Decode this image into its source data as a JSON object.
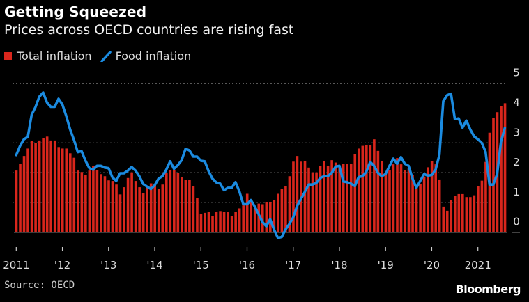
{
  "chart_data": {
    "type": "bar+line",
    "title": "Getting Squeezed",
    "subtitle": "Prices across OECD countries are rising fast",
    "source": "Source: OECD",
    "brand": "Bloomberg",
    "x_start": "2011-01",
    "x_end": "2021-08",
    "x_frequency": "monthly",
    "xtick_labels": [
      "2011",
      "'12",
      "'13",
      "'14",
      "'15",
      "'16",
      "'17",
      "'18",
      "'19",
      "'20",
      "2021"
    ],
    "ytick_labels": [
      "0",
      "1",
      "2",
      "3",
      "4",
      "5"
    ],
    "ylim": [
      -0.4,
      5.3
    ],
    "grid": true,
    "y_axis_side": "right",
    "legend_placement": "top-left",
    "colors": {
      "total": "#d9261c",
      "food": "#1b8be0",
      "background": "#000000"
    },
    "series": [
      {
        "name": "Total inflation",
        "type": "bar",
        "values": [
          2.07,
          2.29,
          2.56,
          2.81,
          3.06,
          3.0,
          3.08,
          3.16,
          3.21,
          3.08,
          3.08,
          2.86,
          2.81,
          2.81,
          2.65,
          2.5,
          2.07,
          2.02,
          1.91,
          2.07,
          2.22,
          2.09,
          1.95,
          1.88,
          1.74,
          1.72,
          1.6,
          1.27,
          1.51,
          1.82,
          2.01,
          1.72,
          1.51,
          1.32,
          1.49,
          1.64,
          1.63,
          1.46,
          1.6,
          1.99,
          2.09,
          2.09,
          1.99,
          1.85,
          1.76,
          1.76,
          1.54,
          1.14,
          0.61,
          0.65,
          0.68,
          0.55,
          0.68,
          0.71,
          0.69,
          0.68,
          0.55,
          0.68,
          0.8,
          0.9,
          1.29,
          1.1,
          0.82,
          0.96,
          0.94,
          1.02,
          1.02,
          1.08,
          1.29,
          1.46,
          1.54,
          1.88,
          2.37,
          2.56,
          2.37,
          2.4,
          2.17,
          2.01,
          2.01,
          2.22,
          2.4,
          2.22,
          2.42,
          2.34,
          2.21,
          2.29,
          2.29,
          2.29,
          2.63,
          2.81,
          2.9,
          2.93,
          2.93,
          3.12,
          2.73,
          2.4,
          1.98,
          2.09,
          2.28,
          2.49,
          2.28,
          2.09,
          2.16,
          1.91,
          1.48,
          1.63,
          1.87,
          2.18,
          2.39,
          2.28,
          1.77,
          0.86,
          0.72,
          1.07,
          1.21,
          1.28,
          1.28,
          1.18,
          1.18,
          1.24,
          1.54,
          1.73,
          2.36,
          3.34,
          3.84,
          4.03,
          4.23,
          4.33
        ]
      },
      {
        "name": "Food inflation",
        "type": "line",
        "values": [
          2.59,
          2.9,
          3.12,
          3.2,
          3.94,
          4.2,
          4.55,
          4.69,
          4.35,
          4.21,
          4.21,
          4.48,
          4.29,
          3.9,
          3.45,
          3.1,
          2.69,
          2.72,
          2.4,
          2.15,
          2.1,
          2.23,
          2.23,
          2.17,
          2.15,
          1.84,
          1.72,
          1.98,
          1.98,
          2.07,
          2.19,
          2.07,
          1.88,
          1.62,
          1.53,
          1.45,
          1.58,
          1.8,
          1.88,
          2.1,
          2.38,
          2.13,
          2.25,
          2.42,
          2.8,
          2.75,
          2.54,
          2.54,
          2.4,
          2.38,
          2.05,
          1.8,
          1.67,
          1.63,
          1.41,
          1.49,
          1.49,
          1.68,
          1.37,
          0.94,
          0.94,
          1.08,
          0.86,
          0.6,
          0.34,
          0.2,
          0.44,
          0.09,
          -0.19,
          -0.16,
          0.09,
          0.28,
          0.5,
          0.88,
          1.12,
          1.35,
          1.6,
          1.6,
          1.65,
          1.82,
          1.88,
          1.88,
          1.99,
          2.2,
          2.23,
          1.7,
          1.68,
          1.63,
          1.55,
          1.85,
          1.88,
          2.03,
          2.36,
          2.23,
          1.99,
          1.88,
          1.95,
          2.22,
          2.47,
          2.3,
          2.52,
          2.3,
          2.23,
          1.8,
          1.49,
          1.72,
          1.95,
          1.9,
          1.92,
          2.1,
          2.6,
          4.4,
          4.6,
          4.65,
          3.8,
          3.82,
          3.51,
          3.75,
          3.45,
          3.22,
          3.12,
          3.0,
          2.7,
          1.6,
          1.6,
          1.95,
          3.04,
          3.5
        ]
      }
    ]
  }
}
